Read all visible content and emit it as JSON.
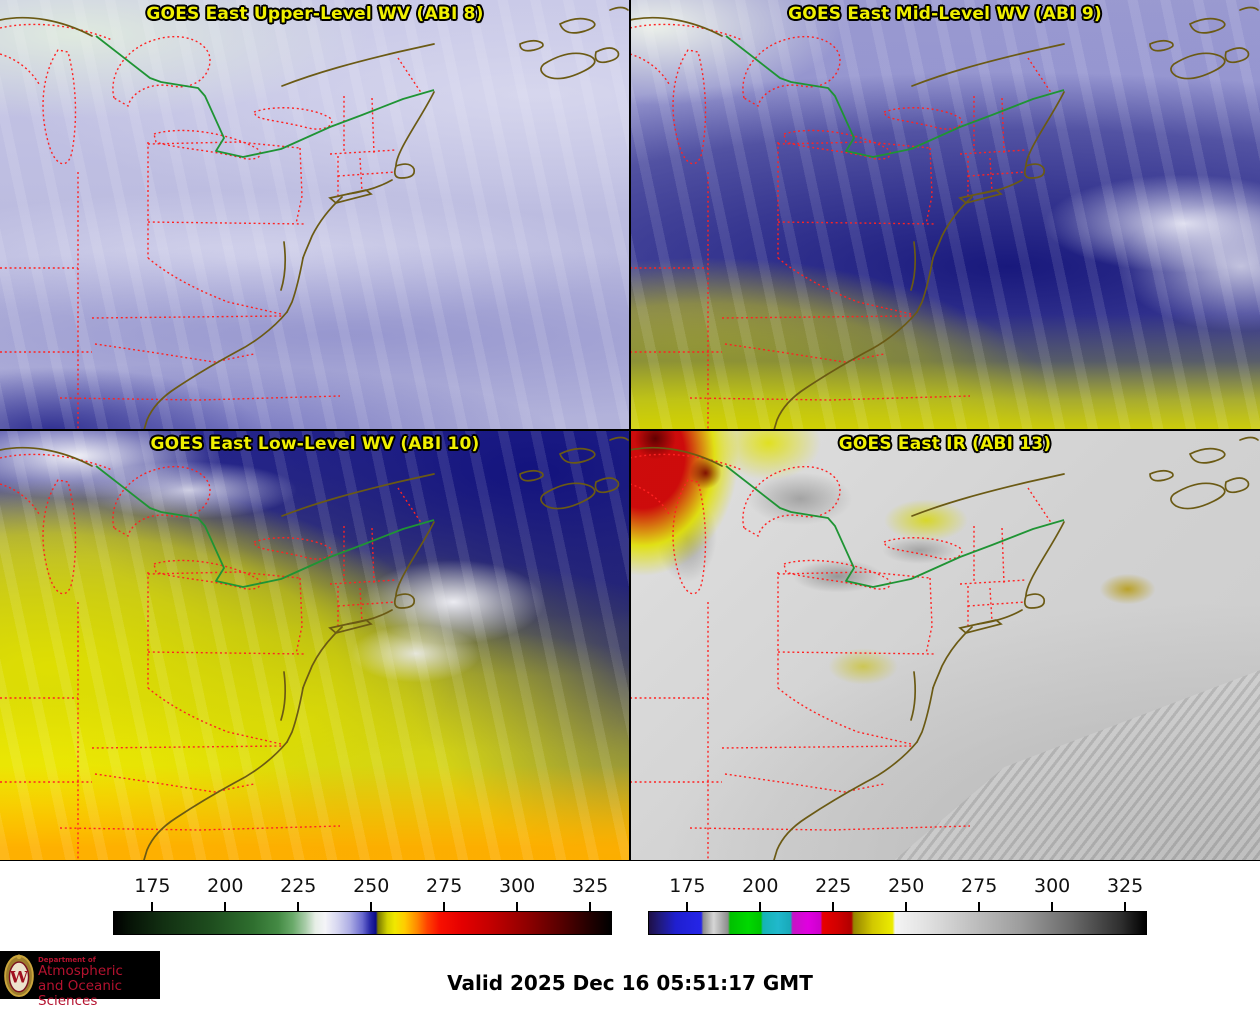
{
  "panels": [
    {
      "id": "abi8",
      "title": "GOES East Upper-Level WV (ABI 8)"
    },
    {
      "id": "abi9",
      "title": "GOES East Mid-Level WV (ABI 9)"
    },
    {
      "id": "abi10",
      "title": "GOES East Low-Level WV (ABI 10)"
    },
    {
      "id": "abi13",
      "title": "GOES East IR (ABI 13)"
    }
  ],
  "colorbars": [
    {
      "id": "wv-colorbar",
      "ticks": [
        175,
        200,
        225,
        250,
        275,
        300,
        325
      ],
      "range": [
        161.5,
        332.5
      ],
      "stops": [
        [
          0,
          "#000000"
        ],
        [
          0.03,
          "#061206"
        ],
        [
          0.1,
          "#123012"
        ],
        [
          0.2,
          "#1f4f1f"
        ],
        [
          0.28,
          "#2f6f2f"
        ],
        [
          0.33,
          "#448a44"
        ],
        [
          0.36,
          "#6aaa6a"
        ],
        [
          0.385,
          "#a8cca8"
        ],
        [
          0.405,
          "#e6eee6"
        ],
        [
          0.425,
          "#f4f4f8"
        ],
        [
          0.45,
          "#d6d6f0"
        ],
        [
          0.475,
          "#adade4"
        ],
        [
          0.5,
          "#6a6ace"
        ],
        [
          0.515,
          "#2828a8"
        ],
        [
          0.527,
          "#0c0c86"
        ],
        [
          0.531,
          "#787800"
        ],
        [
          0.55,
          "#d2d200"
        ],
        [
          0.565,
          "#f0e800"
        ],
        [
          0.585,
          "#ffcc00"
        ],
        [
          0.61,
          "#ff8800"
        ],
        [
          0.63,
          "#ff4400"
        ],
        [
          0.655,
          "#f81000"
        ],
        [
          0.7,
          "#e40000"
        ],
        [
          0.76,
          "#c20000"
        ],
        [
          0.83,
          "#900000"
        ],
        [
          0.9,
          "#560000"
        ],
        [
          0.96,
          "#200000"
        ],
        [
          1,
          "#000000"
        ]
      ]
    },
    {
      "id": "ir-colorbar",
      "ticks": [
        175,
        200,
        225,
        250,
        275,
        300,
        325
      ],
      "range": [
        161.5,
        332.5
      ],
      "stops": [
        [
          0,
          "#1e0f46"
        ],
        [
          0.02,
          "#201a78"
        ],
        [
          0.054,
          "#1f1fd0"
        ],
        [
          0.105,
          "#2525e8"
        ],
        [
          0.109,
          "#8c8c8c"
        ],
        [
          0.13,
          "#d6d6d6"
        ],
        [
          0.159,
          "#8c8c8c"
        ],
        [
          0.163,
          "#00c000"
        ],
        [
          0.2,
          "#00d800"
        ],
        [
          0.225,
          "#00c400"
        ],
        [
          0.229,
          "#14b4b4"
        ],
        [
          0.26,
          "#20b8cc"
        ],
        [
          0.285,
          "#18a8b8"
        ],
        [
          0.289,
          "#c414c4"
        ],
        [
          0.32,
          "#e000e0"
        ],
        [
          0.345,
          "#cc00cc"
        ],
        [
          0.349,
          "#e80000"
        ],
        [
          0.38,
          "#d00000"
        ],
        [
          0.407,
          "#b00000"
        ],
        [
          0.412,
          "#958400"
        ],
        [
          0.45,
          "#d2c800"
        ],
        [
          0.49,
          "#ecec00"
        ],
        [
          0.495,
          "#f4f4f4"
        ],
        [
          0.55,
          "#e4e4e4"
        ],
        [
          0.65,
          "#c0c0c0"
        ],
        [
          0.75,
          "#9c9c9c"
        ],
        [
          0.85,
          "#6a6a6a"
        ],
        [
          0.95,
          "#2e2e2e"
        ],
        [
          1,
          "#000000"
        ]
      ]
    }
  ],
  "footer": {
    "valid_text": "Valid 2025 Dec 16 05:51:17 GMT"
  },
  "logo": {
    "department": "Department of",
    "line1": "Atmospheric",
    "line2": "and Oceanic Sciences",
    "crest_letter": "W",
    "accent": "#b5122f"
  },
  "map": {
    "state_border_color": "#ff2222",
    "coastline_color": "#6b5a14",
    "canada_border_color": "#1f9434",
    "title_color": "#f0f000"
  }
}
